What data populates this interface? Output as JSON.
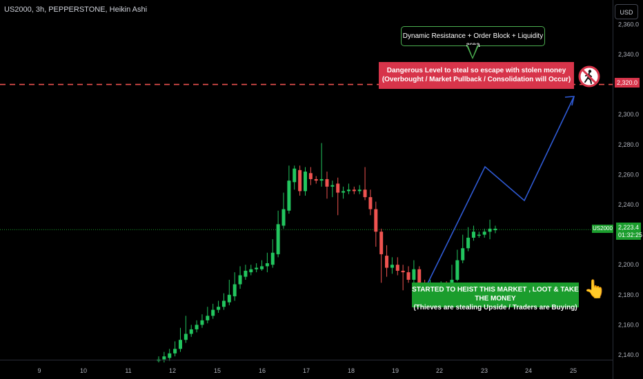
{
  "header": {
    "symbol_info": "US2000, 3h, PEPPERSTONE, Heikin Ashi"
  },
  "toolbar": {
    "currency": "USD"
  },
  "colors": {
    "bull": "#26a69a",
    "bull_candle": "#22c55e",
    "bear": "#ef5350",
    "level": "#ef5350",
    "projection": "#2f5bd6",
    "background": "#000000"
  },
  "chart_data": {
    "type": "candlestick",
    "title": "US2000, 3h, PEPPERSTONE, Heikin Ashi",
    "xlabel": "",
    "ylabel": "",
    "ylim": [
      2133,
      2358
    ],
    "x_ticks": [
      "9",
      "10",
      "11",
      "12",
      "15",
      "16",
      "17",
      "18",
      "19",
      "22",
      "23",
      "24",
      "25"
    ],
    "y_ticks": [
      "2,140.0",
      "2,160.0",
      "2,180.0",
      "2,200.0",
      "2,220.0",
      "2,240.0",
      "2,260.0",
      "2,280.0",
      "2,300.0",
      "2,320.0",
      "2,340.0",
      "2,360.0"
    ],
    "candles": [
      [
        2136,
        2137,
        2139,
        2135
      ],
      [
        2137,
        2139,
        2142,
        2135
      ],
      [
        2138,
        2141,
        2144,
        2136
      ],
      [
        2141,
        2144,
        2149,
        2139
      ],
      [
        2144,
        2150,
        2158,
        2142
      ],
      [
        2150,
        2154,
        2166,
        2148
      ],
      [
        2154,
        2157,
        2160,
        2152
      ],
      [
        2157,
        2160,
        2163,
        2155
      ],
      [
        2160,
        2163,
        2167,
        2158
      ],
      [
        2163,
        2166,
        2172,
        2161
      ],
      [
        2166,
        2170,
        2174,
        2164
      ],
      [
        2170,
        2172,
        2176,
        2168
      ],
      [
        2172,
        2176,
        2181,
        2170
      ],
      [
        2175,
        2180,
        2190,
        2173
      ],
      [
        2179,
        2187,
        2195,
        2176
      ],
      [
        2187,
        2193,
        2199,
        2184
      ],
      [
        2192,
        2196,
        2200,
        2190
      ],
      [
        2195,
        2197,
        2200,
        2193
      ],
      [
        2197,
        2198,
        2201,
        2195
      ],
      [
        2197,
        2199,
        2203,
        2196
      ],
      [
        2199,
        2201,
        2208,
        2195
      ],
      [
        2200,
        2208,
        2217,
        2198
      ],
      [
        2207,
        2227,
        2236,
        2205
      ],
      [
        2226,
        2237,
        2248,
        2224
      ],
      [
        2236,
        2256,
        2266,
        2234
      ],
      [
        2255,
        2264,
        2266,
        2250
      ],
      [
        2263,
        2249,
        2266,
        2246
      ],
      [
        2249,
        2262,
        2265,
        2246
      ],
      [
        2261,
        2257,
        2265,
        2253
      ],
      [
        2257,
        2256,
        2259,
        2254
      ],
      [
        2256,
        2257,
        2281,
        2252
      ],
      [
        2257,
        2252,
        2262,
        2244
      ],
      [
        2252,
        2253,
        2256,
        2245
      ],
      [
        2254,
        2248,
        2258,
        2233
      ],
      [
        2248,
        2249,
        2252,
        2244
      ],
      [
        2249,
        2250,
        2254,
        2247
      ],
      [
        2250,
        2249,
        2252,
        2247
      ],
      [
        2249,
        2250,
        2253,
        2247
      ],
      [
        2250,
        2245,
        2265,
        2243
      ],
      [
        2245,
        2237,
        2250,
        2233
      ],
      [
        2237,
        2222,
        2242,
        2212
      ],
      [
        2222,
        2207,
        2224,
        2188
      ],
      [
        2206,
        2198,
        2213,
        2192
      ],
      [
        2198,
        2200,
        2205,
        2194
      ],
      [
        2200,
        2196,
        2205,
        2193
      ],
      [
        2196,
        2195,
        2200,
        2183
      ],
      [
        2195,
        2190,
        2199,
        2188
      ],
      [
        2190,
        2197,
        2203,
        2188
      ],
      [
        2197,
        2187,
        2199,
        2183
      ],
      [
        2187,
        2184,
        2190,
        2180
      ],
      [
        2184,
        2186,
        2190,
        2182
      ],
      [
        2186,
        2186,
        2188,
        2183
      ],
      [
        2186,
        2187,
        2189,
        2182
      ],
      [
        2187,
        2186,
        2189,
        2183
      ],
      [
        2186,
        2190,
        2200,
        2184
      ],
      [
        2190,
        2203,
        2210,
        2189
      ],
      [
        2203,
        2211,
        2220,
        2201
      ],
      [
        2211,
        2218,
        2225,
        2209
      ],
      [
        2218,
        2222,
        2226,
        2216
      ],
      [
        2220,
        2220,
        2222,
        2218
      ],
      [
        2220,
        2222,
        2224,
        2218
      ],
      [
        2222,
        2224,
        2230,
        2217
      ],
      [
        2223,
        2224,
        2226,
        2221
      ]
    ],
    "last_price": "2,223.4",
    "countdown": "01:32:25",
    "symbol_tag": "US2000",
    "key_level": {
      "value": 2320,
      "label": "2,320.0"
    },
    "projection_path": [
      [
        2190,
        "22"
      ],
      [
        2264,
        "22-23"
      ],
      [
        2241,
        "23-24"
      ],
      [
        2314,
        "24-25"
      ]
    ],
    "annotations": {
      "resistance": "Dynamic Resistance + Order Block + Liquidity area",
      "danger_line1": "Dangerous Level to steal so escape with stolen money",
      "danger_line2": "(Overbought / Market Pullback / Consolidation will Occur)",
      "heist_line1": "STARTED TO HEIST THIS MARKET , LOOT & TAKE THE MONEY",
      "heist_line2": "(Thieves are stealing Upside / Traders are Buying)"
    }
  }
}
